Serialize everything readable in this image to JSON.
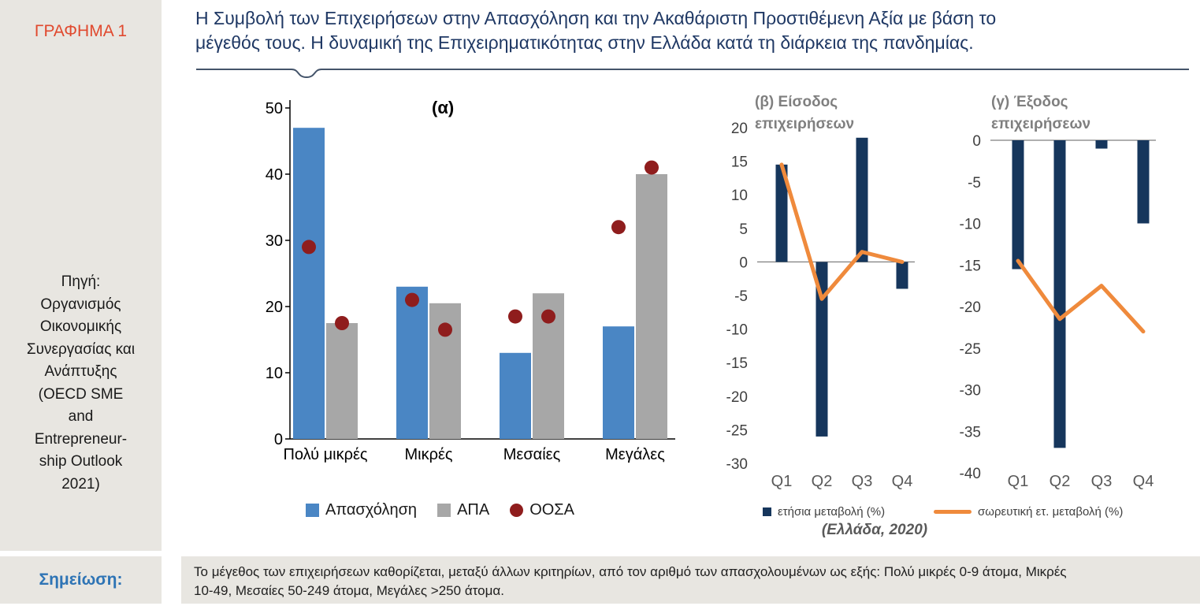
{
  "sidebar": {
    "figure_label": "ΓΡΑΦΗΜΑ 1",
    "source": "Πηγή:\nΟργανισμός\nΟικονομικής\nΣυνεργασίας και\nΑνάπτυξης\n(OECD SME\nand\nEntrepreneur-\nship Outlook\n2021)"
  },
  "header": {
    "title": "Η Συμβολή των Επιχειρήσεων στην Απασχόληση και την Ακαθάριστη Προστιθέμενη Αξία με βάση το\nμέγεθός τους. Η δυναμική της Επιχειρηματικότητας στην Ελλάδα κατά τη διάρκεια της πανδημίας."
  },
  "note": {
    "label": "Σημείωση:",
    "text": "Το μέγεθος των επιχειρήσεων καθορίζεται, μεταξύ άλλων κριτηρίων, από τον αριθμό των απασχολουμένων ως εξής: Πολύ μικρές 0-9 άτομα, Μικρές\n10-49, Μεσαίες 50-249 άτομα, Μεγάλες >250 άτομα."
  },
  "caption": "(Ελλάδα, 2020)",
  "colors": {
    "employment_bar": "#4a86c4",
    "gva_bar": "#a7a7a7",
    "oecd_dot": "#8f1d1d",
    "quarter_bar": "#16365c",
    "trend_line": "#ef8a3c",
    "title_text": "#1f3864",
    "figure_label": "#e0492e",
    "note_label": "#2e74b5"
  },
  "chart_data": [
    {
      "id": "alpha",
      "type": "bar",
      "title": "(α)",
      "categories": [
        "Πολύ μικρές",
        "Μικρές",
        "Μεσαίες",
        "Μεγάλες"
      ],
      "series": [
        {
          "name": "Απασχόληση",
          "color": "#4a86c4",
          "values": [
            47,
            23,
            13,
            17
          ]
        },
        {
          "name": "ΑΠΑ",
          "color": "#a7a7a7",
          "values": [
            17.5,
            20.5,
            22,
            40
          ]
        }
      ],
      "dots": {
        "name": "ΟΟΣΑ",
        "color": "#8f1d1d",
        "values": [
          [
            29,
            17.5
          ],
          [
            21,
            16.5
          ],
          [
            18.5,
            18.5
          ],
          [
            32,
            41
          ]
        ]
      },
      "ylabel": "",
      "ylim": [
        0,
        50
      ],
      "yticks": [
        0,
        10,
        20,
        30,
        40,
        50
      ],
      "grid": false,
      "legend_position": "bottom"
    },
    {
      "id": "beta",
      "type": "bar-line",
      "title": "(β) Είσοδος\nεπιχειρήσεων",
      "categories": [
        "Q1",
        "Q2",
        "Q3",
        "Q4"
      ],
      "bars": {
        "name": "ετήσια μεταβολή (%)",
        "color": "#16365c",
        "values": [
          14.5,
          -26,
          18.5,
          -4
        ]
      },
      "line": {
        "name": "σωρευτική ετ. μεταβολή (%)",
        "color": "#ef8a3c",
        "values": [
          14.5,
          -5.5,
          1.5,
          0
        ]
      },
      "ylim": [
        -30,
        20
      ],
      "yticks": [
        20,
        15,
        10,
        5,
        0,
        -5,
        -10,
        -15,
        -20,
        -25,
        -30
      ],
      "grid": false,
      "legend_position": "bottom"
    },
    {
      "id": "gamma",
      "type": "bar-line",
      "title": "(γ) Έξοδος\nεπιχειρήσεων",
      "categories": [
        "Q1",
        "Q2",
        "Q3",
        "Q4"
      ],
      "bars": {
        "name": "ετήσια μεταβολή (%)",
        "color": "#16365c",
        "values": [
          -15.5,
          -37,
          -1,
          -10
        ]
      },
      "line": {
        "name": "σωρευτική ετ. μεταβολή (%)",
        "color": "#ef8a3c",
        "values": [
          -14.5,
          -21.5,
          -17.5,
          -23
        ]
      },
      "ylim": [
        -40,
        0
      ],
      "yticks": [
        0,
        -5,
        -10,
        -15,
        -20,
        -25,
        -30,
        -35,
        -40
      ],
      "grid": false,
      "legend_position": "bottom"
    }
  ]
}
